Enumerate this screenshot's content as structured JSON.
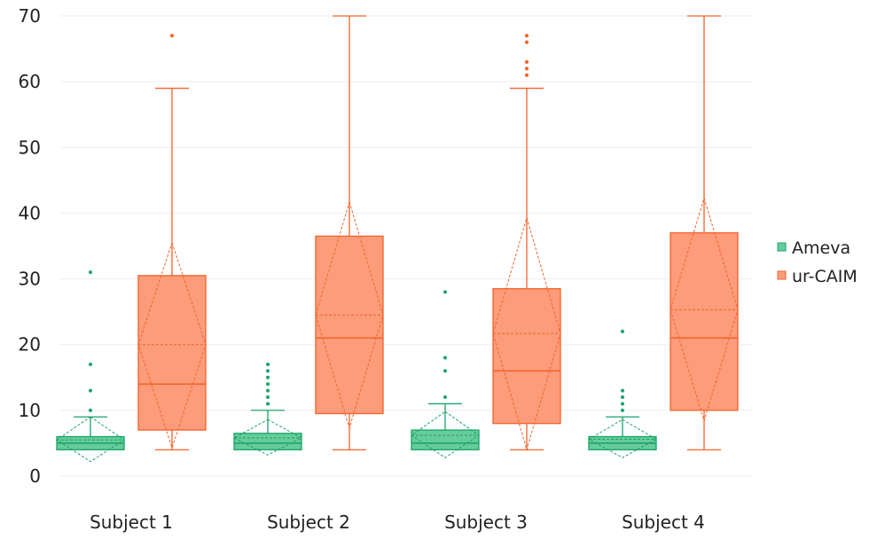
{
  "chart_data": {
    "type": "box",
    "categories": [
      "Subject 1",
      "Subject 2",
      "Subject 3",
      "Subject 4"
    ],
    "ylim": [
      0,
      70
    ],
    "yticks": [
      0,
      10,
      20,
      30,
      40,
      50,
      60,
      70
    ],
    "grid": "horizontal",
    "legend_position": "right",
    "series": [
      {
        "name": "Ameva",
        "color": "#1aa36b",
        "fill": "#66cc99",
        "boxes": [
          {
            "whisker_low": 4,
            "q1": 4,
            "median": 5,
            "q3": 6,
            "whisker_high": 9,
            "mean": 5.5,
            "mean_low": 2.2,
            "mean_high": 9.0,
            "outliers": [
              10,
              13,
              17,
              31
            ]
          },
          {
            "whisker_low": 4,
            "q1": 4,
            "median": 5,
            "q3": 6.5,
            "whisker_high": 10,
            "mean": 5.8,
            "mean_low": 3.2,
            "mean_high": 8.6,
            "outliers": [
              11,
              12,
              13,
              14,
              15,
              16,
              17
            ]
          },
          {
            "whisker_low": 4,
            "q1": 4,
            "median": 5,
            "q3": 7,
            "whisker_high": 11,
            "mean": 6.2,
            "mean_low": 2.8,
            "mean_high": 9.8,
            "outliers": [
              12,
              16,
              18,
              28
            ]
          },
          {
            "whisker_low": 4,
            "q1": 4,
            "median": 5,
            "q3": 6,
            "whisker_high": 9,
            "mean": 5.6,
            "mean_low": 2.8,
            "mean_high": 8.6,
            "outliers": [
              10,
              11,
              12,
              13,
              22
            ]
          }
        ]
      },
      {
        "name": "ur-CAIM",
        "color": "#f4622a",
        "fill": "#fc9c7a",
        "boxes": [
          {
            "whisker_low": 4,
            "q1": 7,
            "median": 14,
            "q3": 30.5,
            "whisker_high": 59,
            "mean": 20,
            "mean_low": 4.3,
            "mean_high": 35.5,
            "outliers": [
              67
            ]
          },
          {
            "whisker_low": 4,
            "q1": 9.5,
            "median": 21,
            "q3": 36.5,
            "whisker_high": 70,
            "mean": 24.5,
            "mean_low": 7.3,
            "mean_high": 41.7,
            "outliers": []
          },
          {
            "whisker_low": 4,
            "q1": 8,
            "median": 16,
            "q3": 28.5,
            "whisker_high": 59,
            "mean": 21.7,
            "mean_low": 4.0,
            "mean_high": 39.3,
            "outliers": [
              61,
              62,
              63,
              66,
              67
            ]
          },
          {
            "whisker_low": 4,
            "q1": 10,
            "median": 21,
            "q3": 37,
            "whisker_high": 70,
            "mean": 25.3,
            "mean_low": 8.4,
            "mean_high": 42.3,
            "outliers": []
          }
        ]
      }
    ]
  }
}
